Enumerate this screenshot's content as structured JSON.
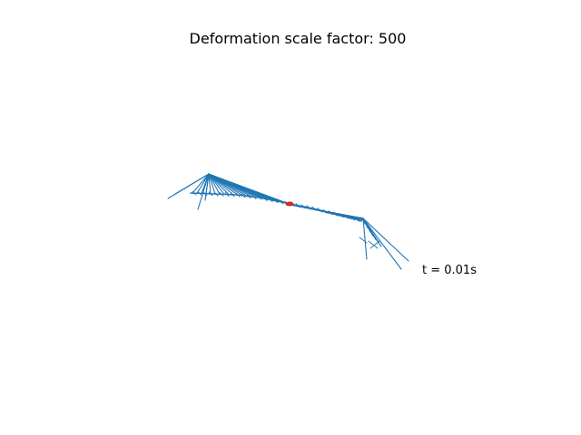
{
  "figure": {
    "title": "Deformation scale factor: 500",
    "time_label": "t = 0.01s"
  },
  "colors": {
    "structure": "#1f77b4",
    "marker": "#d62728",
    "background": "#ffffff",
    "text": "#000000"
  }
}
